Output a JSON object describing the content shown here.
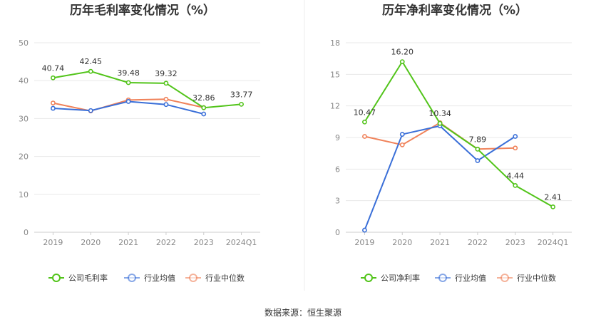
{
  "source": "数据来源：恒生聚源",
  "colors": {
    "company": "#52c41a",
    "avg": "#3a6fd8",
    "median": "#f0825a",
    "grid": "#e8e8e8",
    "axis": "#cccccc"
  },
  "chart_data": [
    {
      "type": "line",
      "title": "历年毛利率变化情况（%）",
      "categories": [
        "2019",
        "2020",
        "2021",
        "2022",
        "2023",
        "2024Q1"
      ],
      "ylim": [
        0,
        50
      ],
      "yticks": [
        "0",
        "10",
        "20",
        "30",
        "40",
        "50"
      ],
      "yticks_values": [
        0,
        10,
        20,
        30,
        40,
        50
      ],
      "grid": true,
      "legend_position": "bottom",
      "series": [
        {
          "name": "公司毛利率",
          "key": "company",
          "values": [
            40.74,
            42.45,
            39.48,
            39.32,
            32.86,
            33.77
          ],
          "labels": [
            "40.74",
            "42.45",
            "39.48",
            "39.32",
            "32.86",
            "33.77"
          ]
        },
        {
          "name": "行业均值",
          "key": "avg",
          "values": [
            32.7,
            32.1,
            34.5,
            33.7,
            31.2,
            null
          ]
        },
        {
          "name": "行业中位数",
          "key": "median",
          "values": [
            34.1,
            32.0,
            34.9,
            35.1,
            32.9,
            null
          ]
        }
      ]
    },
    {
      "type": "line",
      "title": "历年净利率变化情况（%）",
      "categories": [
        "2019",
        "2020",
        "2021",
        "2022",
        "2023",
        "2024Q1"
      ],
      "ylim": [
        0,
        18
      ],
      "yticks": [
        "0",
        "3",
        "6",
        "9",
        "12",
        "15",
        "18"
      ],
      "yticks_values": [
        0,
        3,
        6,
        9,
        12,
        15,
        18
      ],
      "grid": true,
      "legend_position": "bottom",
      "series": [
        {
          "name": "公司净利率",
          "key": "company",
          "values": [
            10.47,
            16.2,
            10.34,
            7.89,
            4.44,
            2.41
          ],
          "labels": [
            "10.47",
            "16.20",
            "10.34",
            "7.89",
            "4.44",
            "2.41"
          ]
        },
        {
          "name": "行业均值",
          "key": "avg",
          "values": [
            0.2,
            9.3,
            10.1,
            6.8,
            9.1,
            null
          ]
        },
        {
          "name": "行业中位数",
          "key": "median",
          "values": [
            9.1,
            8.3,
            10.4,
            7.9,
            8.0,
            null
          ]
        }
      ]
    }
  ]
}
